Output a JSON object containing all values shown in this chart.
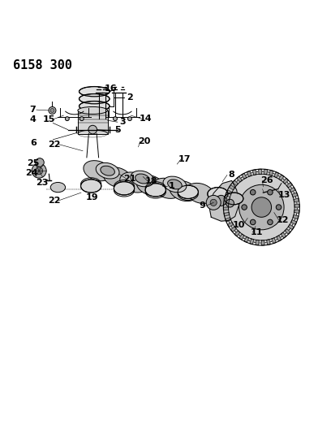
{
  "title": "6158 300",
  "bg_color": "#ffffff",
  "line_color": "#000000",
  "title_fontsize": 11,
  "label_fontsize": 8,
  "fig_width": 4.08,
  "fig_height": 5.33,
  "dpi": 100
}
